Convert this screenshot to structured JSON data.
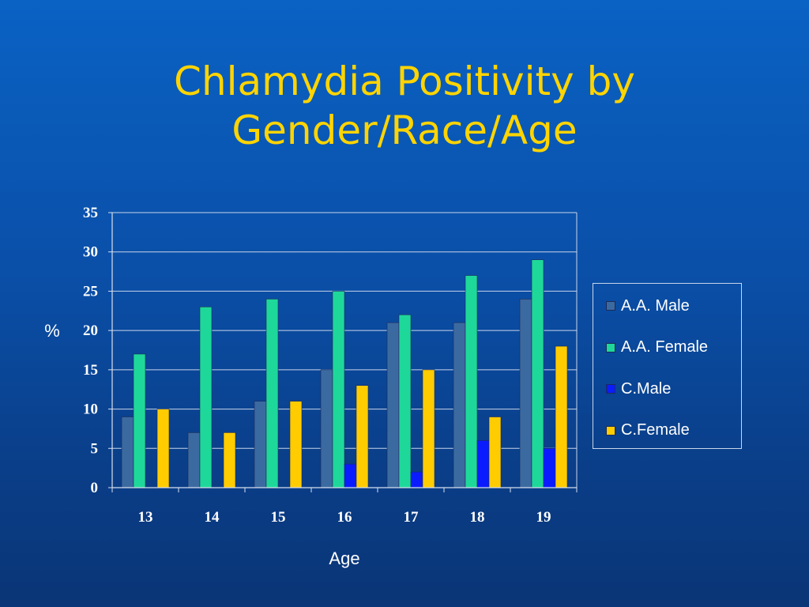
{
  "title_lines": [
    "Chlamydia Positivity by",
    "Gender/Race/Age"
  ],
  "chart_data": {
    "type": "bar",
    "categories": [
      "13",
      "14",
      "15",
      "16",
      "17",
      "18",
      "19"
    ],
    "series": [
      {
        "name": "A.A. Male",
        "color": "#3b6aa0",
        "values": [
          9,
          7,
          11,
          15,
          21,
          21,
          24
        ]
      },
      {
        "name": "A.A. Female",
        "color": "#1ed89a",
        "values": [
          17,
          23,
          24,
          25,
          22,
          27,
          29
        ]
      },
      {
        "name": "C.Male",
        "color": "#0a1cff",
        "values": [
          0,
          0,
          0,
          3,
          2,
          6,
          5
        ]
      },
      {
        "name": "C.Female",
        "color": "#ffcc00",
        "values": [
          10,
          7,
          11,
          13,
          15,
          9,
          18
        ]
      }
    ],
    "xlabel": "Age",
    "ylabel": "%",
    "ylim": [
      0,
      35
    ],
    "yticks": [
      0,
      5,
      10,
      15,
      20,
      25,
      30,
      35
    ],
    "grid": true,
    "legend_position": "right"
  }
}
